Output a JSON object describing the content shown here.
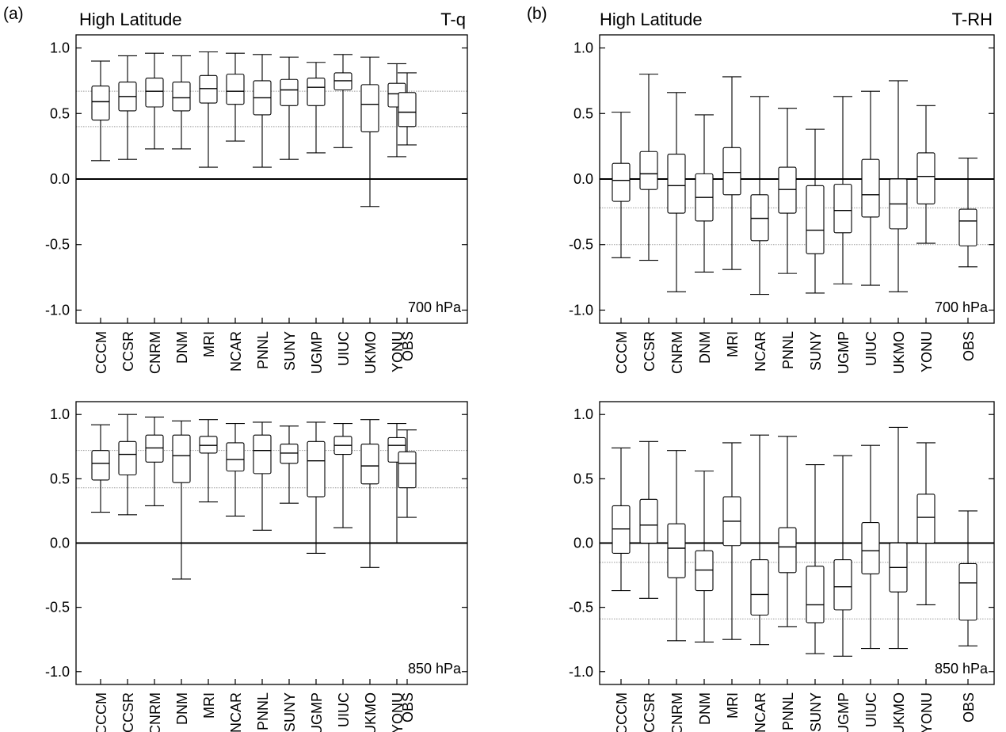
{
  "figure": {
    "panel_letters": [
      "(a)",
      "(b)"
    ]
  },
  "chart_data": [
    {
      "type": "box",
      "panel": "(a)",
      "title": "High Latitude",
      "variable": "T-q",
      "level": "700 hPa",
      "xlabel": "",
      "ylabel": "",
      "ylim": [
        -1.1,
        1.1
      ],
      "yticks": [
        1.0,
        0.5,
        0.0,
        -0.5,
        -1.0
      ],
      "ytick_labels": [
        "1.0",
        "0.5",
        "0.0",
        "-0.5",
        "-1.0"
      ],
      "reference_lines": [
        0.67,
        0.4
      ],
      "zero_line": 0.0,
      "categories": [
        "CCCM",
        "CCSR",
        "CNRM",
        "DNM",
        "MRI",
        "NCAR",
        "PNNL",
        "SUNY",
        "UGMP",
        "UIUC",
        "UKMO",
        "YONU",
        "OBS"
      ],
      "boxes": [
        {
          "min": 0.14,
          "q1": 0.45,
          "median": 0.59,
          "q3": 0.71,
          "max": 0.9
        },
        {
          "min": 0.15,
          "q1": 0.52,
          "median": 0.63,
          "q3": 0.74,
          "max": 0.94
        },
        {
          "min": 0.23,
          "q1": 0.55,
          "median": 0.67,
          "q3": 0.77,
          "max": 0.96
        },
        {
          "min": 0.23,
          "q1": 0.52,
          "median": 0.62,
          "q3": 0.74,
          "max": 0.94
        },
        {
          "min": 0.09,
          "q1": 0.58,
          "median": 0.69,
          "q3": 0.79,
          "max": 0.97
        },
        {
          "min": 0.29,
          "q1": 0.57,
          "median": 0.67,
          "q3": 0.8,
          "max": 0.96
        },
        {
          "min": 0.09,
          "q1": 0.49,
          "median": 0.62,
          "q3": 0.75,
          "max": 0.95
        },
        {
          "min": 0.15,
          "q1": 0.56,
          "median": 0.68,
          "q3": 0.76,
          "max": 0.93
        },
        {
          "min": 0.2,
          "q1": 0.56,
          "median": 0.7,
          "q3": 0.77,
          "max": 0.89
        },
        {
          "min": 0.24,
          "q1": 0.68,
          "median": 0.75,
          "q3": 0.81,
          "max": 0.95
        },
        {
          "min": -0.21,
          "q1": 0.36,
          "median": 0.57,
          "q3": 0.72,
          "max": 0.93
        },
        {
          "min": 0.17,
          "q1": 0.55,
          "median": 0.65,
          "q3": 0.73,
          "max": 0.88
        },
        {
          "min": 0.26,
          "q1": 0.4,
          "median": 0.51,
          "q3": 0.66,
          "max": 0.81
        }
      ]
    },
    {
      "type": "box",
      "panel": "(b)",
      "title": "High Latitude",
      "variable": "T-RH",
      "level": "700 hPa",
      "xlabel": "",
      "ylabel": "",
      "ylim": [
        -1.1,
        1.1
      ],
      "yticks": [
        1.0,
        0.5,
        0.0,
        -0.5,
        -1.0
      ],
      "ytick_labels": [
        "1.0",
        "0.5",
        "0.0",
        "-0.5",
        "-1.0"
      ],
      "reference_lines": [
        -0.22,
        -0.5
      ],
      "zero_line": 0.0,
      "categories": [
        "CCCM",
        "CCSR",
        "CNRM",
        "DNM",
        "MRI",
        "NCAR",
        "PNNL",
        "SUNY",
        "UGMP",
        "UIUC",
        "UKMO",
        "YONU",
        "OBS"
      ],
      "boxes": [
        {
          "min": -0.6,
          "q1": -0.17,
          "median": -0.01,
          "q3": 0.12,
          "max": 0.51
        },
        {
          "min": -0.62,
          "q1": -0.08,
          "median": 0.04,
          "q3": 0.21,
          "max": 0.8
        },
        {
          "min": -0.86,
          "q1": -0.26,
          "median": -0.05,
          "q3": 0.19,
          "max": 0.66
        },
        {
          "min": -0.71,
          "q1": -0.32,
          "median": -0.14,
          "q3": 0.04,
          "max": 0.49
        },
        {
          "min": -0.69,
          "q1": -0.12,
          "median": 0.05,
          "q3": 0.24,
          "max": 0.78
        },
        {
          "min": -0.88,
          "q1": -0.47,
          "median": -0.3,
          "q3": -0.12,
          "max": 0.63
        },
        {
          "min": -0.72,
          "q1": -0.26,
          "median": -0.08,
          "q3": 0.09,
          "max": 0.54
        },
        {
          "min": -0.87,
          "q1": -0.57,
          "median": -0.39,
          "q3": -0.05,
          "max": 0.38
        },
        {
          "min": -0.8,
          "q1": -0.41,
          "median": -0.24,
          "q3": -0.04,
          "max": 0.63
        },
        {
          "min": -0.81,
          "q1": -0.29,
          "median": -0.12,
          "q3": 0.15,
          "max": 0.67
        },
        {
          "min": -0.86,
          "q1": -0.38,
          "median": -0.19,
          "q3": 0.0,
          "max": 0.75
        },
        {
          "min": -0.49,
          "q1": -0.19,
          "median": 0.02,
          "q3": 0.2,
          "max": 0.56
        },
        {
          "min": -0.67,
          "q1": -0.51,
          "median": -0.32,
          "q3": -0.23,
          "max": 0.16
        }
      ]
    },
    {
      "type": "box",
      "panel": "(a)",
      "title": "",
      "variable": "",
      "level": "850 hPa",
      "xlabel": "",
      "ylabel": "",
      "ylim": [
        -1.1,
        1.1
      ],
      "yticks": [
        1.0,
        0.5,
        0.0,
        -0.5,
        -1.0
      ],
      "ytick_labels": [
        "1.0",
        "0.5",
        "0.0",
        "-0.5",
        "-1.0"
      ],
      "reference_lines": [
        0.72,
        0.43
      ],
      "zero_line": 0.0,
      "categories": [
        "CCCM",
        "CCSR",
        "CNRM",
        "DNM",
        "MRI",
        "NCAR",
        "PNNL",
        "SUNY",
        "UGMP",
        "UIUC",
        "UKMO",
        "YONU",
        "OBS"
      ],
      "boxes": [
        {
          "min": 0.24,
          "q1": 0.49,
          "median": 0.62,
          "q3": 0.72,
          "max": 0.92
        },
        {
          "min": 0.22,
          "q1": 0.53,
          "median": 0.69,
          "q3": 0.79,
          "max": 1.0
        },
        {
          "min": 0.29,
          "q1": 0.63,
          "median": 0.74,
          "q3": 0.84,
          "max": 0.98
        },
        {
          "min": -0.28,
          "q1": 0.47,
          "median": 0.68,
          "q3": 0.84,
          "max": 0.95
        },
        {
          "min": 0.32,
          "q1": 0.7,
          "median": 0.76,
          "q3": 0.83,
          "max": 0.96
        },
        {
          "min": 0.21,
          "q1": 0.56,
          "median": 0.65,
          "q3": 0.78,
          "max": 0.93
        },
        {
          "min": 0.1,
          "q1": 0.54,
          "median": 0.72,
          "q3": 0.84,
          "max": 0.94
        },
        {
          "min": 0.31,
          "q1": 0.62,
          "median": 0.7,
          "q3": 0.77,
          "max": 0.91
        },
        {
          "min": -0.08,
          "q1": 0.36,
          "median": 0.64,
          "q3": 0.79,
          "max": 0.94
        },
        {
          "min": 0.12,
          "q1": 0.69,
          "median": 0.76,
          "q3": 0.83,
          "max": 0.93
        },
        {
          "min": -0.19,
          "q1": 0.46,
          "median": 0.6,
          "q3": 0.77,
          "max": 0.96
        },
        {
          "min": 0.0,
          "q1": 0.63,
          "median": 0.76,
          "q3": 0.82,
          "max": 0.93
        },
        {
          "min": 0.2,
          "q1": 0.43,
          "median": 0.62,
          "q3": 0.71,
          "max": 0.88
        }
      ]
    },
    {
      "type": "box",
      "panel": "(b)",
      "title": "",
      "variable": "",
      "level": "850 hPa",
      "xlabel": "",
      "ylabel": "",
      "ylim": [
        -1.1,
        1.1
      ],
      "yticks": [
        1.0,
        0.5,
        0.0,
        -0.5,
        -1.0
      ],
      "ytick_labels": [
        "1.0",
        "0.5",
        "0.0",
        "-0.5",
        "-1.0"
      ],
      "reference_lines": [
        -0.15,
        -0.59
      ],
      "zero_line": 0.0,
      "categories": [
        "CCCM",
        "CCSR",
        "CNRM",
        "DNM",
        "MRI",
        "NCAR",
        "PNNL",
        "SUNY",
        "UGMP",
        "UIUC",
        "UKMO",
        "YONU",
        "OBS"
      ],
      "boxes": [
        {
          "min": -0.37,
          "q1": -0.08,
          "median": 0.11,
          "q3": 0.29,
          "max": 0.74
        },
        {
          "min": -0.43,
          "q1": 0.0,
          "median": 0.14,
          "q3": 0.34,
          "max": 0.79
        },
        {
          "min": -0.76,
          "q1": -0.27,
          "median": -0.04,
          "q3": 0.15,
          "max": 0.72
        },
        {
          "min": -0.77,
          "q1": -0.37,
          "median": -0.21,
          "q3": -0.06,
          "max": 0.56
        },
        {
          "min": -0.75,
          "q1": -0.02,
          "median": 0.17,
          "q3": 0.36,
          "max": 0.78
        },
        {
          "min": -0.79,
          "q1": -0.56,
          "median": -0.4,
          "q3": -0.13,
          "max": 0.84
        },
        {
          "min": -0.65,
          "q1": -0.23,
          "median": -0.03,
          "q3": 0.12,
          "max": 0.83
        },
        {
          "min": -0.86,
          "q1": -0.62,
          "median": -0.48,
          "q3": -0.18,
          "max": 0.61
        },
        {
          "min": -0.88,
          "q1": -0.52,
          "median": -0.34,
          "q3": -0.13,
          "max": 0.68
        },
        {
          "min": -0.82,
          "q1": -0.24,
          "median": -0.06,
          "q3": 0.16,
          "max": 0.76
        },
        {
          "min": -0.82,
          "q1": -0.38,
          "median": -0.19,
          "q3": 0.0,
          "max": 0.9
        },
        {
          "min": -0.48,
          "q1": 0.0,
          "median": 0.2,
          "q3": 0.38,
          "max": 0.78
        },
        {
          "min": -0.8,
          "q1": -0.6,
          "median": -0.31,
          "q3": -0.16,
          "max": 0.25
        }
      ]
    }
  ]
}
